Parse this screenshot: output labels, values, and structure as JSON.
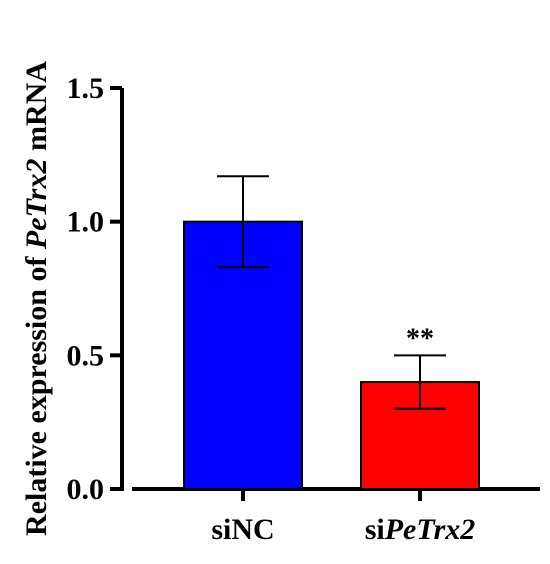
{
  "chart_data": {
    "type": "bar",
    "categories": [
      {
        "prefix": "si",
        "italic": "NC"
      },
      {
        "prefix": "si",
        "italic": "PeTrx2"
      }
    ],
    "category_labels": [
      "siNC",
      "siPeTrx2"
    ],
    "values": [
      1.0,
      0.4
    ],
    "error": [
      0.17,
      0.1
    ],
    "significance": [
      "",
      "**"
    ],
    "colors": [
      "#0000ff",
      "#ff0000"
    ],
    "ylim": [
      0,
      1.5
    ],
    "yticks": [
      0.0,
      0.5,
      1.0,
      1.5
    ],
    "ytick_labels": [
      "0.0",
      "0.5",
      "1.0",
      "1.5"
    ],
    "ylabel_parts": {
      "before": "Relative expression of ",
      "italic": "PeTrx2",
      "after": " mRNA"
    },
    "xlabel": "",
    "title": "",
    "grid": false
  }
}
